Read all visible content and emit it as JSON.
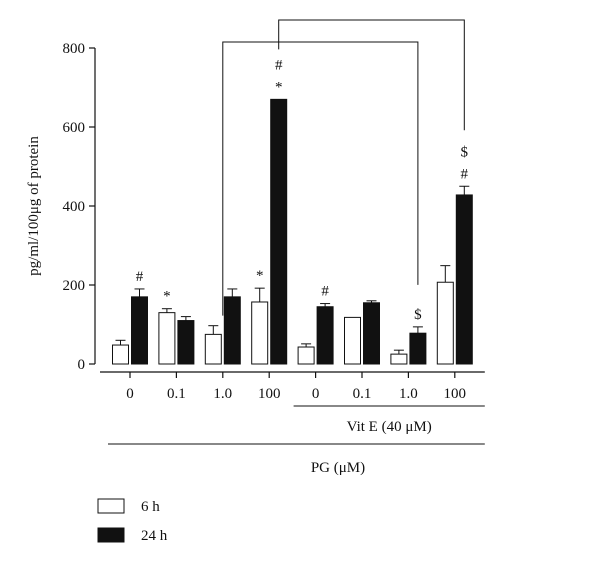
{
  "chart_data": {
    "type": "bar",
    "ylabel": "pg/ml/100μg of protein",
    "ylim": [
      0,
      800
    ],
    "yticks": [
      "0",
      "200",
      "400",
      "600",
      "800"
    ],
    "categories": [
      "0",
      "0.1",
      "1.0",
      "100",
      "0",
      "0.1",
      "1.0",
      "100"
    ],
    "group_labels": {
      "vit_e": "Vit E (40 μM)",
      "pg": "PG (μM)"
    },
    "vit_e_group_start_index": 4,
    "series": [
      {
        "name": "6 h",
        "values": [
          48,
          130,
          75,
          157,
          43,
          118,
          25,
          207
        ],
        "errors": [
          12,
          10,
          22,
          35,
          8,
          0,
          10,
          42
        ],
        "color": "#ffffff"
      },
      {
        "name": "24 h",
        "values": [
          170,
          110,
          170,
          670,
          145,
          155,
          78,
          428
        ],
        "errors": [
          20,
          10,
          20,
          0,
          8,
          5,
          16,
          22
        ],
        "color": "#111111"
      }
    ],
    "annotations": [
      {
        "series": 1,
        "index": 0,
        "text": "#"
      },
      {
        "series": 0,
        "index": 1,
        "text": "*"
      },
      {
        "series": 0,
        "index": 3,
        "text": "*"
      },
      {
        "series": 1,
        "index": 3,
        "text": "*"
      },
      {
        "series": 1,
        "index": 3,
        "text": "#"
      },
      {
        "series": 1,
        "index": 4,
        "text": "#"
      },
      {
        "series": 1,
        "index": 6,
        "text": "$"
      },
      {
        "series": 1,
        "index": 7,
        "text": "#"
      },
      {
        "series": 1,
        "index": 7,
        "text": "$"
      }
    ],
    "brackets": [
      {
        "from_index": 2,
        "to_index": 6
      },
      {
        "from_index": 3,
        "to_index": 7
      }
    ],
    "legend_position": "bottom-left",
    "grid": false
  }
}
